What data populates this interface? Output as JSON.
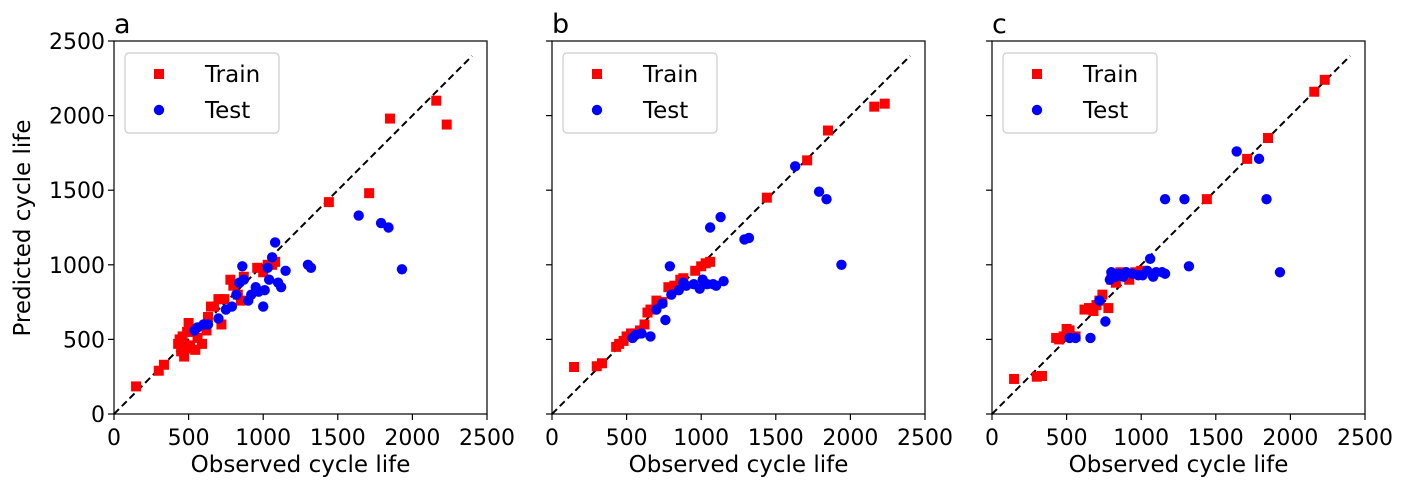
{
  "figure": {
    "ylabel": "Predicted cycle life",
    "xlabel": "Observed cycle life",
    "legend_labels": [
      "Train",
      "Test"
    ],
    "colors": {
      "train": "#ff0000",
      "test": "#0000ff",
      "diagonal": "#000000"
    },
    "markers": {
      "train": "square",
      "test": "circle"
    }
  },
  "chart_data": [
    {
      "type": "scatter",
      "panel_label": "a",
      "xlabel": "Observed cycle life",
      "ylabel": "Predicted cycle life",
      "xlim": [
        0,
        2500
      ],
      "ylim": [
        0,
        2500
      ],
      "xticks": [
        0,
        500,
        1000,
        1500,
        2000,
        2500
      ],
      "yticks": [
        0,
        500,
        1000,
        1500,
        2000,
        2500
      ],
      "show_yticklabels": true,
      "legend_position": "top-left",
      "reference_line": {
        "style": "dashed",
        "from": [
          0,
          0
        ],
        "to": [
          2400,
          2400
        ]
      },
      "series": [
        {
          "name": "Train",
          "points": [
            [
              148,
              185
            ],
            [
              300,
              290
            ],
            [
              335,
              330
            ],
            [
              430,
              470
            ],
            [
              440,
              500
            ],
            [
              450,
              420
            ],
            [
              460,
              520
            ],
            [
              470,
              385
            ],
            [
              480,
              440
            ],
            [
              490,
              550
            ],
            [
              500,
              610
            ],
            [
              510,
              460
            ],
            [
              520,
              560
            ],
            [
              545,
              430
            ],
            [
              560,
              510
            ],
            [
              590,
              470
            ],
            [
              620,
              560
            ],
            [
              630,
              650
            ],
            [
              650,
              720
            ],
            [
              670,
              720
            ],
            [
              700,
              770
            ],
            [
              720,
              600
            ],
            [
              740,
              770
            ],
            [
              780,
              900
            ],
            [
              800,
              860
            ],
            [
              830,
              800
            ],
            [
              850,
              760
            ],
            [
              870,
              920
            ],
            [
              960,
              980
            ],
            [
              1000,
              950
            ],
            [
              1030,
              1000
            ],
            [
              1060,
              1000
            ],
            [
              1080,
              1020
            ],
            [
              1440,
              1420
            ],
            [
              1710,
              1480
            ],
            [
              1850,
              1980
            ],
            [
              2160,
              2100
            ],
            [
              2230,
              1940
            ]
          ]
        },
        {
          "name": "Test",
          "points": [
            [
              540,
              560
            ],
            [
              560,
              580
            ],
            [
              600,
              600
            ],
            [
              630,
              600
            ],
            [
              700,
              640
            ],
            [
              750,
              700
            ],
            [
              790,
              720
            ],
            [
              820,
              800
            ],
            [
              840,
              880
            ],
            [
              860,
              990
            ],
            [
              870,
              900
            ],
            [
              900,
              760
            ],
            [
              920,
              800
            ],
            [
              950,
              850
            ],
            [
              970,
              820
            ],
            [
              1000,
              720
            ],
            [
              1010,
              830
            ],
            [
              1030,
              980
            ],
            [
              1040,
              900
            ],
            [
              1060,
              1050
            ],
            [
              1080,
              1150
            ],
            [
              1100,
              880
            ],
            [
              1120,
              850
            ],
            [
              1150,
              960
            ],
            [
              1300,
              1000
            ],
            [
              1320,
              980
            ],
            [
              1640,
              1330
            ],
            [
              1790,
              1280
            ],
            [
              1840,
              1250
            ],
            [
              1930,
              970
            ]
          ]
        }
      ]
    },
    {
      "type": "scatter",
      "panel_label": "b",
      "xlabel": "Observed cycle life",
      "ylabel": "",
      "xlim": [
        0,
        2500
      ],
      "ylim": [
        0,
        2500
      ],
      "xticks": [
        0,
        500,
        1000,
        1500,
        2000,
        2500
      ],
      "yticks": [
        0,
        500,
        1000,
        1500,
        2000,
        2500
      ],
      "show_yticklabels": false,
      "legend_position": "top-left",
      "reference_line": {
        "style": "dashed",
        "from": [
          0,
          0
        ],
        "to": [
          2400,
          2400
        ]
      },
      "series": [
        {
          "name": "Train",
          "points": [
            [
              148,
              315
            ],
            [
              300,
              320
            ],
            [
              335,
              340
            ],
            [
              430,
              450
            ],
            [
              450,
              470
            ],
            [
              480,
              490
            ],
            [
              500,
              520
            ],
            [
              530,
              540
            ],
            [
              560,
              540
            ],
            [
              590,
              560
            ],
            [
              620,
              600
            ],
            [
              640,
              680
            ],
            [
              660,
              700
            ],
            [
              700,
              760
            ],
            [
              740,
              750
            ],
            [
              780,
              850
            ],
            [
              820,
              860
            ],
            [
              860,
              900
            ],
            [
              880,
              910
            ],
            [
              960,
              960
            ],
            [
              1000,
              990
            ],
            [
              1030,
              1010
            ],
            [
              1060,
              1020
            ],
            [
              1440,
              1450
            ],
            [
              1710,
              1700
            ],
            [
              1850,
              1900
            ],
            [
              2160,
              2060
            ],
            [
              2230,
              2080
            ]
          ]
        },
        {
          "name": "Test",
          "points": [
            [
              540,
              510
            ],
            [
              560,
              530
            ],
            [
              600,
              540
            ],
            [
              660,
              520
            ],
            [
              700,
              700
            ],
            [
              740,
              740
            ],
            [
              760,
              630
            ],
            [
              790,
              990
            ],
            [
              800,
              800
            ],
            [
              850,
              830
            ],
            [
              880,
              880
            ],
            [
              900,
              860
            ],
            [
              950,
              870
            ],
            [
              990,
              840
            ],
            [
              1010,
              900
            ],
            [
              1040,
              870
            ],
            [
              1060,
              1250
            ],
            [
              1080,
              870
            ],
            [
              1100,
              860
            ],
            [
              1130,
              1320
            ],
            [
              1150,
              890
            ],
            [
              1290,
              1170
            ],
            [
              1320,
              1180
            ],
            [
              1630,
              1660
            ],
            [
              1790,
              1490
            ],
            [
              1840,
              1440
            ],
            [
              1940,
              1000
            ]
          ]
        }
      ]
    },
    {
      "type": "scatter",
      "panel_label": "c",
      "xlabel": "Observed cycle life",
      "ylabel": "",
      "xlim": [
        0,
        2500
      ],
      "ylim": [
        0,
        2500
      ],
      "xticks": [
        0,
        500,
        1000,
        1500,
        2000,
        2500
      ],
      "yticks": [
        0,
        500,
        1000,
        1500,
        2000,
        2500
      ],
      "show_yticklabels": false,
      "legend_position": "top-left",
      "reference_line": {
        "style": "dashed",
        "from": [
          0,
          0
        ],
        "to": [
          2400,
          2400
        ]
      },
      "series": [
        {
          "name": "Train",
          "points": [
            [
              148,
              235
            ],
            [
              300,
              250
            ],
            [
              335,
              255
            ],
            [
              430,
              510
            ],
            [
              450,
              500
            ],
            [
              480,
              520
            ],
            [
              500,
              570
            ],
            [
              520,
              560
            ],
            [
              560,
              520
            ],
            [
              620,
              700
            ],
            [
              650,
              710
            ],
            [
              680,
              690
            ],
            [
              700,
              730
            ],
            [
              720,
              760
            ],
            [
              740,
              800
            ],
            [
              780,
              710
            ],
            [
              800,
              900
            ],
            [
              830,
              880
            ],
            [
              860,
              950
            ],
            [
              880,
              930
            ],
            [
              920,
              900
            ],
            [
              960,
              950
            ],
            [
              1000,
              960
            ],
            [
              1440,
              1440
            ],
            [
              1710,
              1710
            ],
            [
              1850,
              1850
            ],
            [
              2160,
              2160
            ],
            [
              2230,
              2240
            ]
          ]
        },
        {
          "name": "Test",
          "points": [
            [
              520,
              510
            ],
            [
              560,
              510
            ],
            [
              660,
              510
            ],
            [
              720,
              760
            ],
            [
              760,
              620
            ],
            [
              790,
              900
            ],
            [
              800,
              950
            ],
            [
              830,
              920
            ],
            [
              850,
              940
            ],
            [
              880,
              920
            ],
            [
              900,
              950
            ],
            [
              940,
              940
            ],
            [
              980,
              930
            ],
            [
              1010,
              930
            ],
            [
              1040,
              960
            ],
            [
              1060,
              1040
            ],
            [
              1080,
              920
            ],
            [
              1100,
              950
            ],
            [
              1140,
              950
            ],
            [
              1160,
              1440
            ],
            [
              1160,
              940
            ],
            [
              1290,
              1440
            ],
            [
              1320,
              990
            ],
            [
              1640,
              1760
            ],
            [
              1790,
              1710
            ],
            [
              1840,
              1440
            ],
            [
              1930,
              950
            ]
          ]
        }
      ]
    }
  ]
}
